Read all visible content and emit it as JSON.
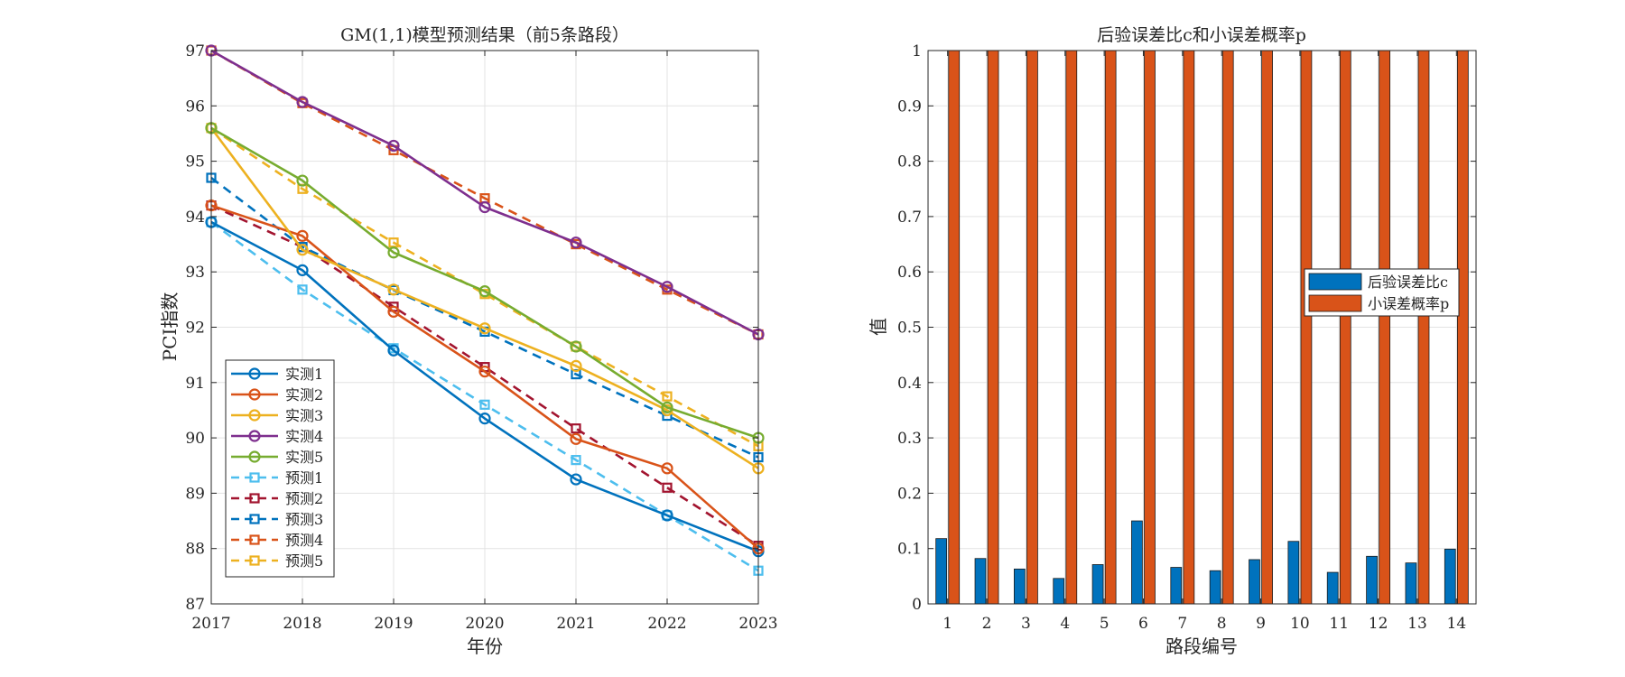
{
  "chart_data": [
    {
      "type": "line",
      "title": "GM(1,1)模型预测结果（前5条路段）",
      "xlabel": "年份",
      "ylabel": "PCI指数",
      "x": [
        2017,
        2018,
        2019,
        2020,
        2021,
        2022,
        2023
      ],
      "xlim": [
        2017,
        2023
      ],
      "ylim": [
        87,
        97
      ],
      "xticks": [
        "2017",
        "2018",
        "2019",
        "2020",
        "2021",
        "2022",
        "2023"
      ],
      "yticks": [
        "87",
        "88",
        "89",
        "90",
        "91",
        "92",
        "93",
        "94",
        "95",
        "96",
        "97"
      ],
      "grid": true,
      "legend_position": "bottom-left",
      "series": [
        {
          "name": "实测1",
          "color": "#0072BD",
          "style": "solid",
          "marker": "circle",
          "values": [
            93.9,
            93.03,
            91.58,
            90.35,
            89.25,
            88.6,
            87.95
          ]
        },
        {
          "name": "实测2",
          "color": "#D95319",
          "style": "solid",
          "marker": "circle",
          "values": [
            94.2,
            93.65,
            92.28,
            91.2,
            89.98,
            89.45,
            88.0
          ]
        },
        {
          "name": "实测3",
          "color": "#EDB120",
          "style": "solid",
          "marker": "circle",
          "values": [
            95.6,
            93.4,
            92.68,
            91.98,
            91.3,
            90.5,
            89.45
          ]
        },
        {
          "name": "实测4",
          "color": "#7E2F8E",
          "style": "solid",
          "marker": "circle",
          "values": [
            97.0,
            96.07,
            95.28,
            94.17,
            93.53,
            92.73,
            91.87
          ]
        },
        {
          "name": "实测5",
          "color": "#77AC30",
          "style": "solid",
          "marker": "circle",
          "values": [
            95.6,
            94.65,
            93.35,
            92.65,
            91.65,
            90.55,
            90.0
          ]
        },
        {
          "name": "预测1",
          "color": "#4DBEEE",
          "style": "dashed",
          "marker": "square",
          "values": [
            93.9,
            92.68,
            91.62,
            90.6,
            89.6,
            88.6,
            87.6
          ]
        },
        {
          "name": "预测2",
          "color": "#A2142F",
          "style": "dashed",
          "marker": "square",
          "values": [
            94.2,
            93.45,
            92.37,
            91.28,
            90.17,
            89.1,
            88.05
          ]
        },
        {
          "name": "预测3",
          "color": "#0072BD",
          "style": "dashed",
          "marker": "square",
          "values": [
            94.7,
            93.45,
            92.67,
            91.92,
            91.15,
            90.4,
            89.65
          ]
        },
        {
          "name": "预测4",
          "color": "#D95319",
          "style": "dashed",
          "marker": "square",
          "values": [
            97.0,
            96.05,
            95.2,
            94.33,
            93.5,
            92.68,
            91.87
          ]
        },
        {
          "name": "预测5",
          "color": "#EDB120",
          "style": "dashed",
          "marker": "square",
          "values": [
            95.6,
            94.5,
            93.53,
            92.6,
            91.65,
            90.75,
            89.85
          ]
        }
      ]
    },
    {
      "type": "bar",
      "title": "后验误差比c和小误差概率p",
      "xlabel": "路段编号",
      "ylabel": "值",
      "categories": [
        "1",
        "2",
        "3",
        "4",
        "5",
        "6",
        "7",
        "8",
        "9",
        "10",
        "11",
        "12",
        "13",
        "14"
      ],
      "ylim": [
        0,
        1
      ],
      "yticks": [
        "0",
        "0.1",
        "0.2",
        "0.3",
        "0.4",
        "0.5",
        "0.6",
        "0.7",
        "0.8",
        "0.9",
        "1"
      ],
      "grid": true,
      "legend_position": "right",
      "series": [
        {
          "name": "后验误差比c",
          "color": "#0072BD",
          "values": [
            0.118,
            0.082,
            0.063,
            0.046,
            0.071,
            0.15,
            0.066,
            0.06,
            0.08,
            0.113,
            0.057,
            0.086,
            0.074,
            0.099
          ]
        },
        {
          "name": "小误差概率p",
          "color": "#D95319",
          "values": [
            1,
            1,
            1,
            1,
            1,
            1,
            1,
            1,
            1,
            1,
            1,
            1,
            1,
            1
          ]
        }
      ]
    }
  ]
}
